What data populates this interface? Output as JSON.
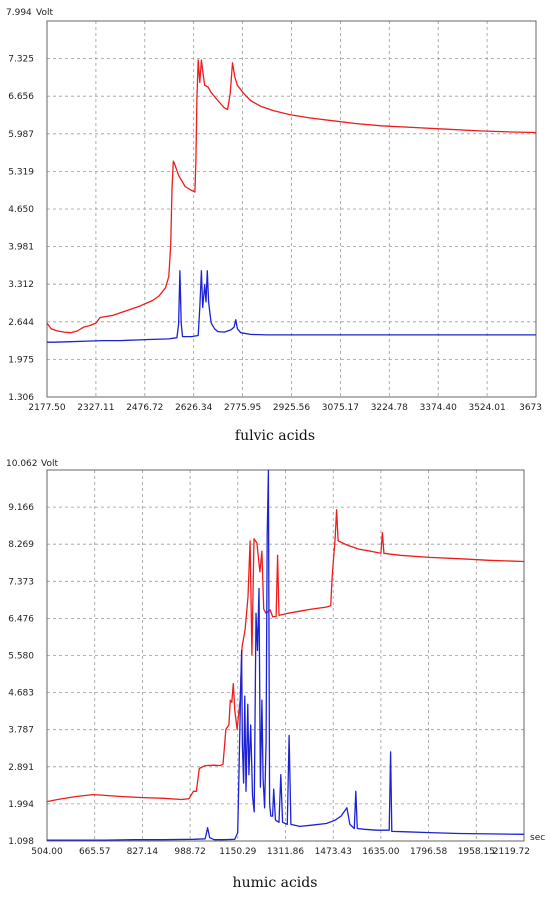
{
  "chart_data": [
    {
      "type": "line",
      "caption": "fulvic acids",
      "yunit": "Volt",
      "xunit": "",
      "xlim": [
        2177.5,
        3673.6
      ],
      "ylim": [
        1.306,
        7.994
      ],
      "x_ticks": [
        "2177.50",
        "2327.11",
        "2476.72",
        "2626.34",
        "2775.95",
        "2925.56",
        "3075.17",
        "3224.78",
        "3374.40",
        "3524.01",
        "3673"
      ],
      "y_ticks": [
        "7.994",
        "7.325",
        "6.656",
        "5.987",
        "5.319",
        "4.650",
        "3.981",
        "3.312",
        "2.644",
        "1.975",
        "1.306"
      ],
      "colors": {
        "red": "#ee1c1c",
        "blue": "#1c22d4",
        "grid": "#9a9a9a"
      },
      "grid": true,
      "series": [
        {
          "color": "#ee1c1c",
          "points": [
            [
              2177.5,
              2.62
            ],
            [
              2190,
              2.52
            ],
            [
              2210,
              2.48
            ],
            [
              2230,
              2.46
            ],
            [
              2250,
              2.45
            ],
            [
              2270,
              2.48
            ],
            [
              2290,
              2.55
            ],
            [
              2310,
              2.58
            ],
            [
              2327,
              2.62
            ],
            [
              2340,
              2.72
            ],
            [
              2360,
              2.74
            ],
            [
              2380,
              2.76
            ],
            [
              2400,
              2.8
            ],
            [
              2420,
              2.84
            ],
            [
              2440,
              2.88
            ],
            [
              2460,
              2.92
            ],
            [
              2480,
              2.97
            ],
            [
              2500,
              3.02
            ],
            [
              2520,
              3.1
            ],
            [
              2540,
              3.25
            ],
            [
              2550,
              3.45
            ],
            [
              2556,
              4.0
            ],
            [
              2560,
              5.0
            ],
            [
              2564,
              5.5
            ],
            [
              2568,
              5.45
            ],
            [
              2580,
              5.25
            ],
            [
              2600,
              5.05
            ],
            [
              2620,
              4.98
            ],
            [
              2630,
              4.95
            ],
            [
              2633,
              5.5
            ],
            [
              2636,
              6.6
            ],
            [
              2640,
              7.3
            ],
            [
              2645,
              6.9
            ],
            [
              2650,
              7.3
            ],
            [
              2655,
              7.05
            ],
            [
              2660,
              6.85
            ],
            [
              2670,
              6.82
            ],
            [
              2680,
              6.72
            ],
            [
              2700,
              6.58
            ],
            [
              2720,
              6.45
            ],
            [
              2730,
              6.42
            ],
            [
              2738,
              6.7
            ],
            [
              2745,
              7.25
            ],
            [
              2752,
              7.0
            ],
            [
              2760,
              6.85
            ],
            [
              2780,
              6.7
            ],
            [
              2800,
              6.58
            ],
            [
              2830,
              6.48
            ],
            [
              2870,
              6.4
            ],
            [
              2920,
              6.33
            ],
            [
              2980,
              6.27
            ],
            [
              3050,
              6.22
            ],
            [
              3120,
              6.17
            ],
            [
              3200,
              6.13
            ],
            [
              3300,
              6.1
            ],
            [
              3400,
              6.07
            ],
            [
              3500,
              6.04
            ],
            [
              3600,
              6.02
            ],
            [
              3673,
              6.01
            ]
          ]
        },
        {
          "color": "#1c22d4",
          "points": [
            [
              2177.5,
              2.28
            ],
            [
              2200,
              2.28
            ],
            [
              2250,
              2.29
            ],
            [
              2300,
              2.3
            ],
            [
              2350,
              2.31
            ],
            [
              2400,
              2.31
            ],
            [
              2450,
              2.32
            ],
            [
              2500,
              2.33
            ],
            [
              2550,
              2.34
            ],
            [
              2575,
              2.36
            ],
            [
              2580,
              2.6
            ],
            [
              2584,
              3.55
            ],
            [
              2588,
              2.62
            ],
            [
              2592,
              2.38
            ],
            [
              2600,
              2.38
            ],
            [
              2620,
              2.38
            ],
            [
              2640,
              2.4
            ],
            [
              2645,
              2.9
            ],
            [
              2650,
              3.55
            ],
            [
              2654,
              2.9
            ],
            [
              2660,
              3.3
            ],
            [
              2664,
              3.0
            ],
            [
              2668,
              3.55
            ],
            [
              2672,
              3.0
            ],
            [
              2676,
              2.8
            ],
            [
              2680,
              2.62
            ],
            [
              2690,
              2.52
            ],
            [
              2700,
              2.47
            ],
            [
              2720,
              2.46
            ],
            [
              2740,
              2.5
            ],
            [
              2750,
              2.55
            ],
            [
              2755,
              2.68
            ],
            [
              2760,
              2.52
            ],
            [
              2770,
              2.45
            ],
            [
              2800,
              2.42
            ],
            [
              2850,
              2.41
            ],
            [
              2900,
              2.41
            ],
            [
              3000,
              2.41
            ],
            [
              3100,
              2.41
            ],
            [
              3200,
              2.41
            ],
            [
              3300,
              2.41
            ],
            [
              3400,
              2.41
            ],
            [
              3500,
              2.41
            ],
            [
              3600,
              2.41
            ],
            [
              3673,
              2.41
            ]
          ]
        }
      ]
    },
    {
      "type": "line",
      "caption": "humic acids",
      "yunit": "Volt",
      "xunit": "sec",
      "xlim": [
        504.0,
        2119.72
      ],
      "ylim": [
        1.098,
        10.062
      ],
      "x_ticks": [
        "504.00",
        "665.57",
        "827.14",
        "988.72",
        "1150.29",
        "1311.86",
        "1473.43",
        "1635.00",
        "1796.58",
        "1958.15",
        "2119.72"
      ],
      "y_ticks": [
        "10.062",
        "9.166",
        "8.269",
        "7.373",
        "6.476",
        "5.580",
        "4.683",
        "3.787",
        "2.891",
        "1.994",
        "1.098"
      ],
      "colors": {
        "red": "#ee1c1c",
        "blue": "#1c22d4",
        "grid": "#9a9a9a"
      },
      "grid": true,
      "series": [
        {
          "color": "#ee1c1c",
          "points": [
            [
              504,
              2.05
            ],
            [
              540,
              2.1
            ],
            [
              600,
              2.17
            ],
            [
              660,
              2.22
            ],
            [
              700,
              2.2
            ],
            [
              760,
              2.17
            ],
            [
              820,
              2.15
            ],
            [
              900,
              2.13
            ],
            [
              960,
              2.1
            ],
            [
              985,
              2.12
            ],
            [
              1000,
              2.3
            ],
            [
              1010,
              2.3
            ],
            [
              1020,
              2.85
            ],
            [
              1040,
              2.92
            ],
            [
              1070,
              2.93
            ],
            [
              1090,
              2.92
            ],
            [
              1100,
              2.95
            ],
            [
              1110,
              3.8
            ],
            [
              1120,
              3.9
            ],
            [
              1125,
              4.5
            ],
            [
              1130,
              4.45
            ],
            [
              1135,
              4.9
            ],
            [
              1140,
              4.25
            ],
            [
              1148,
              3.8
            ],
            [
              1158,
              4.5
            ],
            [
              1165,
              5.8
            ],
            [
              1175,
              6.2
            ],
            [
              1185,
              7.0
            ],
            [
              1192,
              8.35
            ],
            [
              1198,
              5.6
            ],
            [
              1205,
              8.4
            ],
            [
              1215,
              8.3
            ],
            [
              1225,
              7.6
            ],
            [
              1232,
              8.1
            ],
            [
              1238,
              6.7
            ],
            [
              1246,
              6.6
            ],
            [
              1260,
              6.68
            ],
            [
              1268,
              6.52
            ],
            [
              1280,
              6.52
            ],
            [
              1285,
              8.0
            ],
            [
              1290,
              6.55
            ],
            [
              1320,
              6.6
            ],
            [
              1360,
              6.65
            ],
            [
              1400,
              6.7
            ],
            [
              1450,
              6.75
            ],
            [
              1465,
              6.78
            ],
            [
              1470,
              7.5
            ],
            [
              1480,
              8.4
            ],
            [
              1485,
              9.1
            ],
            [
              1490,
              8.35
            ],
            [
              1520,
              8.25
            ],
            [
              1560,
              8.15
            ],
            [
              1600,
              8.1
            ],
            [
              1635,
              8.05
            ],
            [
              1640,
              8.55
            ],
            [
              1645,
              8.05
            ],
            [
              1700,
              8.0
            ],
            [
              1800,
              7.95
            ],
            [
              1900,
              7.92
            ],
            [
              2000,
              7.88
            ],
            [
              2119,
              7.85
            ]
          ]
        },
        {
          "color": "#1c22d4",
          "points": [
            [
              504,
              1.12
            ],
            [
              600,
              1.12
            ],
            [
              700,
              1.12
            ],
            [
              800,
              1.13
            ],
            [
              900,
              1.13
            ],
            [
              1000,
              1.14
            ],
            [
              1040,
              1.15
            ],
            [
              1048,
              1.42
            ],
            [
              1055,
              1.18
            ],
            [
              1070,
              1.13
            ],
            [
              1100,
              1.13
            ],
            [
              1140,
              1.14
            ],
            [
              1150,
              1.3
            ],
            [
              1155,
              3.0
            ],
            [
              1160,
              4.8
            ],
            [
              1163,
              5.7
            ],
            [
              1166,
              3.4
            ],
            [
              1170,
              2.5
            ],
            [
              1174,
              4.6
            ],
            [
              1178,
              2.3
            ],
            [
              1184,
              4.4
            ],
            [
              1188,
              2.7
            ],
            [
              1194,
              3.9
            ],
            [
              1200,
              2.2
            ],
            [
              1206,
              1.8
            ],
            [
              1212,
              6.6
            ],
            [
              1217,
              5.7
            ],
            [
              1222,
              7.2
            ],
            [
              1227,
              2.4
            ],
            [
              1232,
              4.5
            ],
            [
              1236,
              2.6
            ],
            [
              1241,
              1.9
            ],
            [
              1246,
              3.5
            ],
            [
              1250,
              8.5
            ],
            [
              1254,
              10.05
            ],
            [
              1258,
              2.0
            ],
            [
              1262,
              1.7
            ],
            [
              1268,
              1.7
            ],
            [
              1272,
              2.35
            ],
            [
              1278,
              1.6
            ],
            [
              1290,
              1.55
            ],
            [
              1296,
              2.7
            ],
            [
              1302,
              1.55
            ],
            [
              1318,
              1.5
            ],
            [
              1324,
              3.65
            ],
            [
              1330,
              1.5
            ],
            [
              1360,
              1.45
            ],
            [
              1400,
              1.48
            ],
            [
              1450,
              1.52
            ],
            [
              1480,
              1.6
            ],
            [
              1500,
              1.7
            ],
            [
              1520,
              1.9
            ],
            [
              1530,
              1.5
            ],
            [
              1545,
              1.4
            ],
            [
              1550,
              2.3
            ],
            [
              1555,
              1.4
            ],
            [
              1580,
              1.38
            ],
            [
              1620,
              1.36
            ],
            [
              1663,
              1.36
            ],
            [
              1668,
              3.25
            ],
            [
              1672,
              1.33
            ],
            [
              1720,
              1.32
            ],
            [
              1800,
              1.3
            ],
            [
              1900,
              1.28
            ],
            [
              2000,
              1.27
            ],
            [
              2119,
              1.26
            ]
          ]
        }
      ]
    }
  ]
}
